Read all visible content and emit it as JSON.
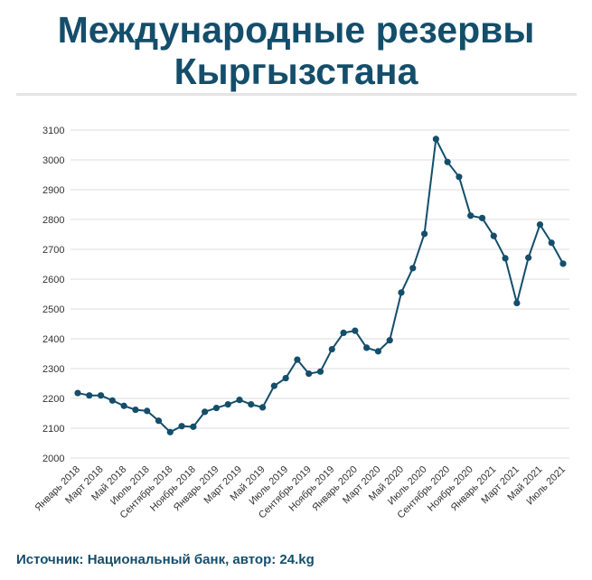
{
  "title": {
    "line1": "Международные резервы",
    "line2": "Кыргызстана"
  },
  "source": "Источник: Национальный банк, автор: 24.kg",
  "colors": {
    "accent": "#144e6b",
    "grid": "#dddddd"
  },
  "chart_data": {
    "type": "line",
    "title": "Международные резервы Кыргызстана",
    "xlabel": "",
    "ylabel": "",
    "ylim": [
      2000,
      3100
    ],
    "yticks": [
      2000,
      2100,
      2200,
      2300,
      2400,
      2500,
      2600,
      2700,
      2800,
      2900,
      3000,
      3100
    ],
    "grid": true,
    "categories": [
      "Январь 2018",
      "Февраль 2018",
      "Март 2018",
      "Апрель 2018",
      "Май 2018",
      "Июнь 2018",
      "Июль 2018",
      "Август 2018",
      "Сентябрь 2018",
      "Октябрь 2018",
      "Ноябрь 2018",
      "Декабрь 2018",
      "Январь 2019",
      "Февраль 2019",
      "Март 2019",
      "Апрель 2019",
      "Май 2019",
      "Июнь 2019",
      "Июль 2019",
      "Август 2019",
      "Сентябрь 2019",
      "Октябрь 2019",
      "Ноябрь 2019",
      "Декабрь 2019",
      "Январь 2020",
      "Февраль 2020",
      "Март 2020",
      "Апрель 2020",
      "Май 2020",
      "Июнь 2020",
      "Июль 2020",
      "Август 2020",
      "Сентябрь 2020",
      "Октябрь 2020",
      "Ноябрь 2020",
      "Декабрь 2020",
      "Январь 2021",
      "Февраль 2021",
      "Март 2021",
      "Апрель 2021",
      "Май 2021",
      "Июнь 2021",
      "Июль 2021"
    ],
    "labeled_categories": [
      "Январь 2018",
      "Март 2018",
      "Май 2018",
      "Июль 2018",
      "Сентябрь 2018",
      "Ноябрь 2018",
      "Январь 2019",
      "Март 2019",
      "Май 2019",
      "Июль 2019",
      "Сентябрь 2019",
      "Ноябрь 2019",
      "Январь 2020",
      "Март 2020",
      "Май 2020",
      "Июль 2020",
      "Сентябрь 2020",
      "Ноябрь 2020",
      "Январь 2021",
      "Март 2021",
      "Май 2021",
      "Июль 2021"
    ],
    "series": [
      {
        "values": [
          2218,
          2210,
          2210,
          2193,
          2175,
          2162,
          2158,
          2125,
          2087,
          2107,
          2105,
          2155,
          2168,
          2180,
          2195,
          2180,
          2170,
          2242,
          2268,
          2330,
          2283,
          2290,
          2365,
          2420,
          2427,
          2370,
          2358,
          2395,
          2555,
          2637,
          2752,
          3070,
          2993,
          2943,
          2813,
          2805,
          2745,
          2670,
          2520,
          2672,
          2783,
          2722,
          2652
        ]
      }
    ]
  }
}
